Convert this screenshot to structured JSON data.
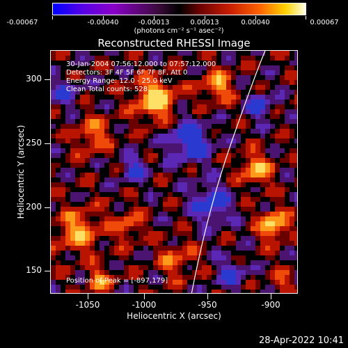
{
  "colorbar": {
    "ticks": [
      "-0.00067",
      "-0.00040",
      "-0.00013",
      "0.00013",
      "0.00040",
      "0.00067"
    ],
    "units": "(photons cm⁻² s⁻¹ asec⁻²)"
  },
  "plot": {
    "title": "Reconstructed RHESSI Image",
    "annotations": [
      "30-Jan-2004 07:56:12.000 to 07:57:12.000",
      "Detectors: 3F 4F 5F 6F 7F 8F, Att 0",
      "Energy Range: 12.0 - 25.0 keV",
      "Clean     Total counts: 528"
    ],
    "peak_text": "Position of Peak = [-897,179]",
    "xlabel": "Heliocentric X (arcsec)",
    "ylabel": "Heliocentric Y (arcsec)",
    "xticks": [
      "-1050",
      "-1000",
      "-950",
      "-900"
    ],
    "yticks": [
      "300",
      "250",
      "200",
      "150"
    ]
  },
  "footer": {
    "date": "28-Apr-2022 10:41"
  },
  "colors": {
    "background": "#000000",
    "limb": "#ffffff"
  }
}
